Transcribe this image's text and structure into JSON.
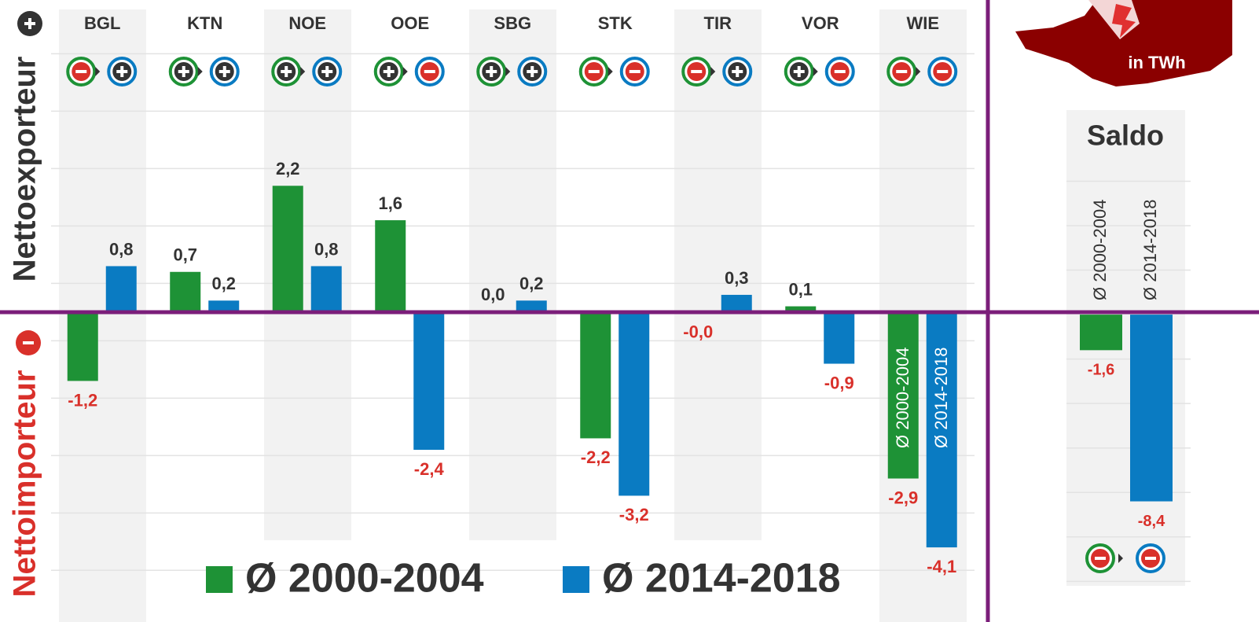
{
  "chart_data": [
    {
      "type": "bar",
      "ylabel_top": "Nettoexporteur",
      "ylabel_bottom": "Nettoimporteur",
      "unit_note": "in TWh",
      "categories": [
        "BGL",
        "KTN",
        "NOE",
        "OOE",
        "SBG",
        "STK",
        "TIR",
        "VOR",
        "WIE"
      ],
      "series": [
        {
          "name": "Ø 2000-2004",
          "color": "#1e9236",
          "values": [
            -1.2,
            0.7,
            2.2,
            1.6,
            0.01,
            -2.2,
            -0.01,
            0.1,
            -2.9
          ],
          "value_labels": [
            "-1,2",
            "0,7",
            "2,2",
            "1,6",
            "0,0",
            "-2,2",
            "-0,0",
            "0,1",
            "-2,9"
          ]
        },
        {
          "name": "Ø 2014-2018",
          "color": "#0a7bc2",
          "values": [
            0.8,
            0.2,
            0.8,
            -2.4,
            0.2,
            -3.2,
            0.3,
            -0.9,
            -4.1
          ],
          "value_labels": [
            "0,8",
            "0,2",
            "0,8",
            "-2,4",
            "0,2",
            "-3,2",
            "0,3",
            "-0,9",
            "-4,1"
          ]
        }
      ],
      "ylim": [
        -5.4,
        5.3
      ],
      "yticks": [
        -4.5,
        -3.5,
        -2.5,
        -1.5,
        -0.5,
        0.5,
        1.5,
        2.5,
        3.5,
        4.5
      ],
      "grid": true
    },
    {
      "type": "bar",
      "title": "Saldo",
      "categories": [
        "Ø 2000-2004",
        "Ø 2014-2018"
      ],
      "values": [
        -1.6,
        -8.4
      ],
      "value_labels": [
        "-1,6",
        "-8,4"
      ],
      "colors": [
        "#1e9236",
        "#0a7bc2"
      ],
      "ylim": [
        -12.2,
        9.2
      ],
      "yticks": [
        -12,
        -10,
        -8,
        -6,
        -4,
        -2,
        2,
        4,
        6
      ],
      "grid": true
    }
  ]
}
